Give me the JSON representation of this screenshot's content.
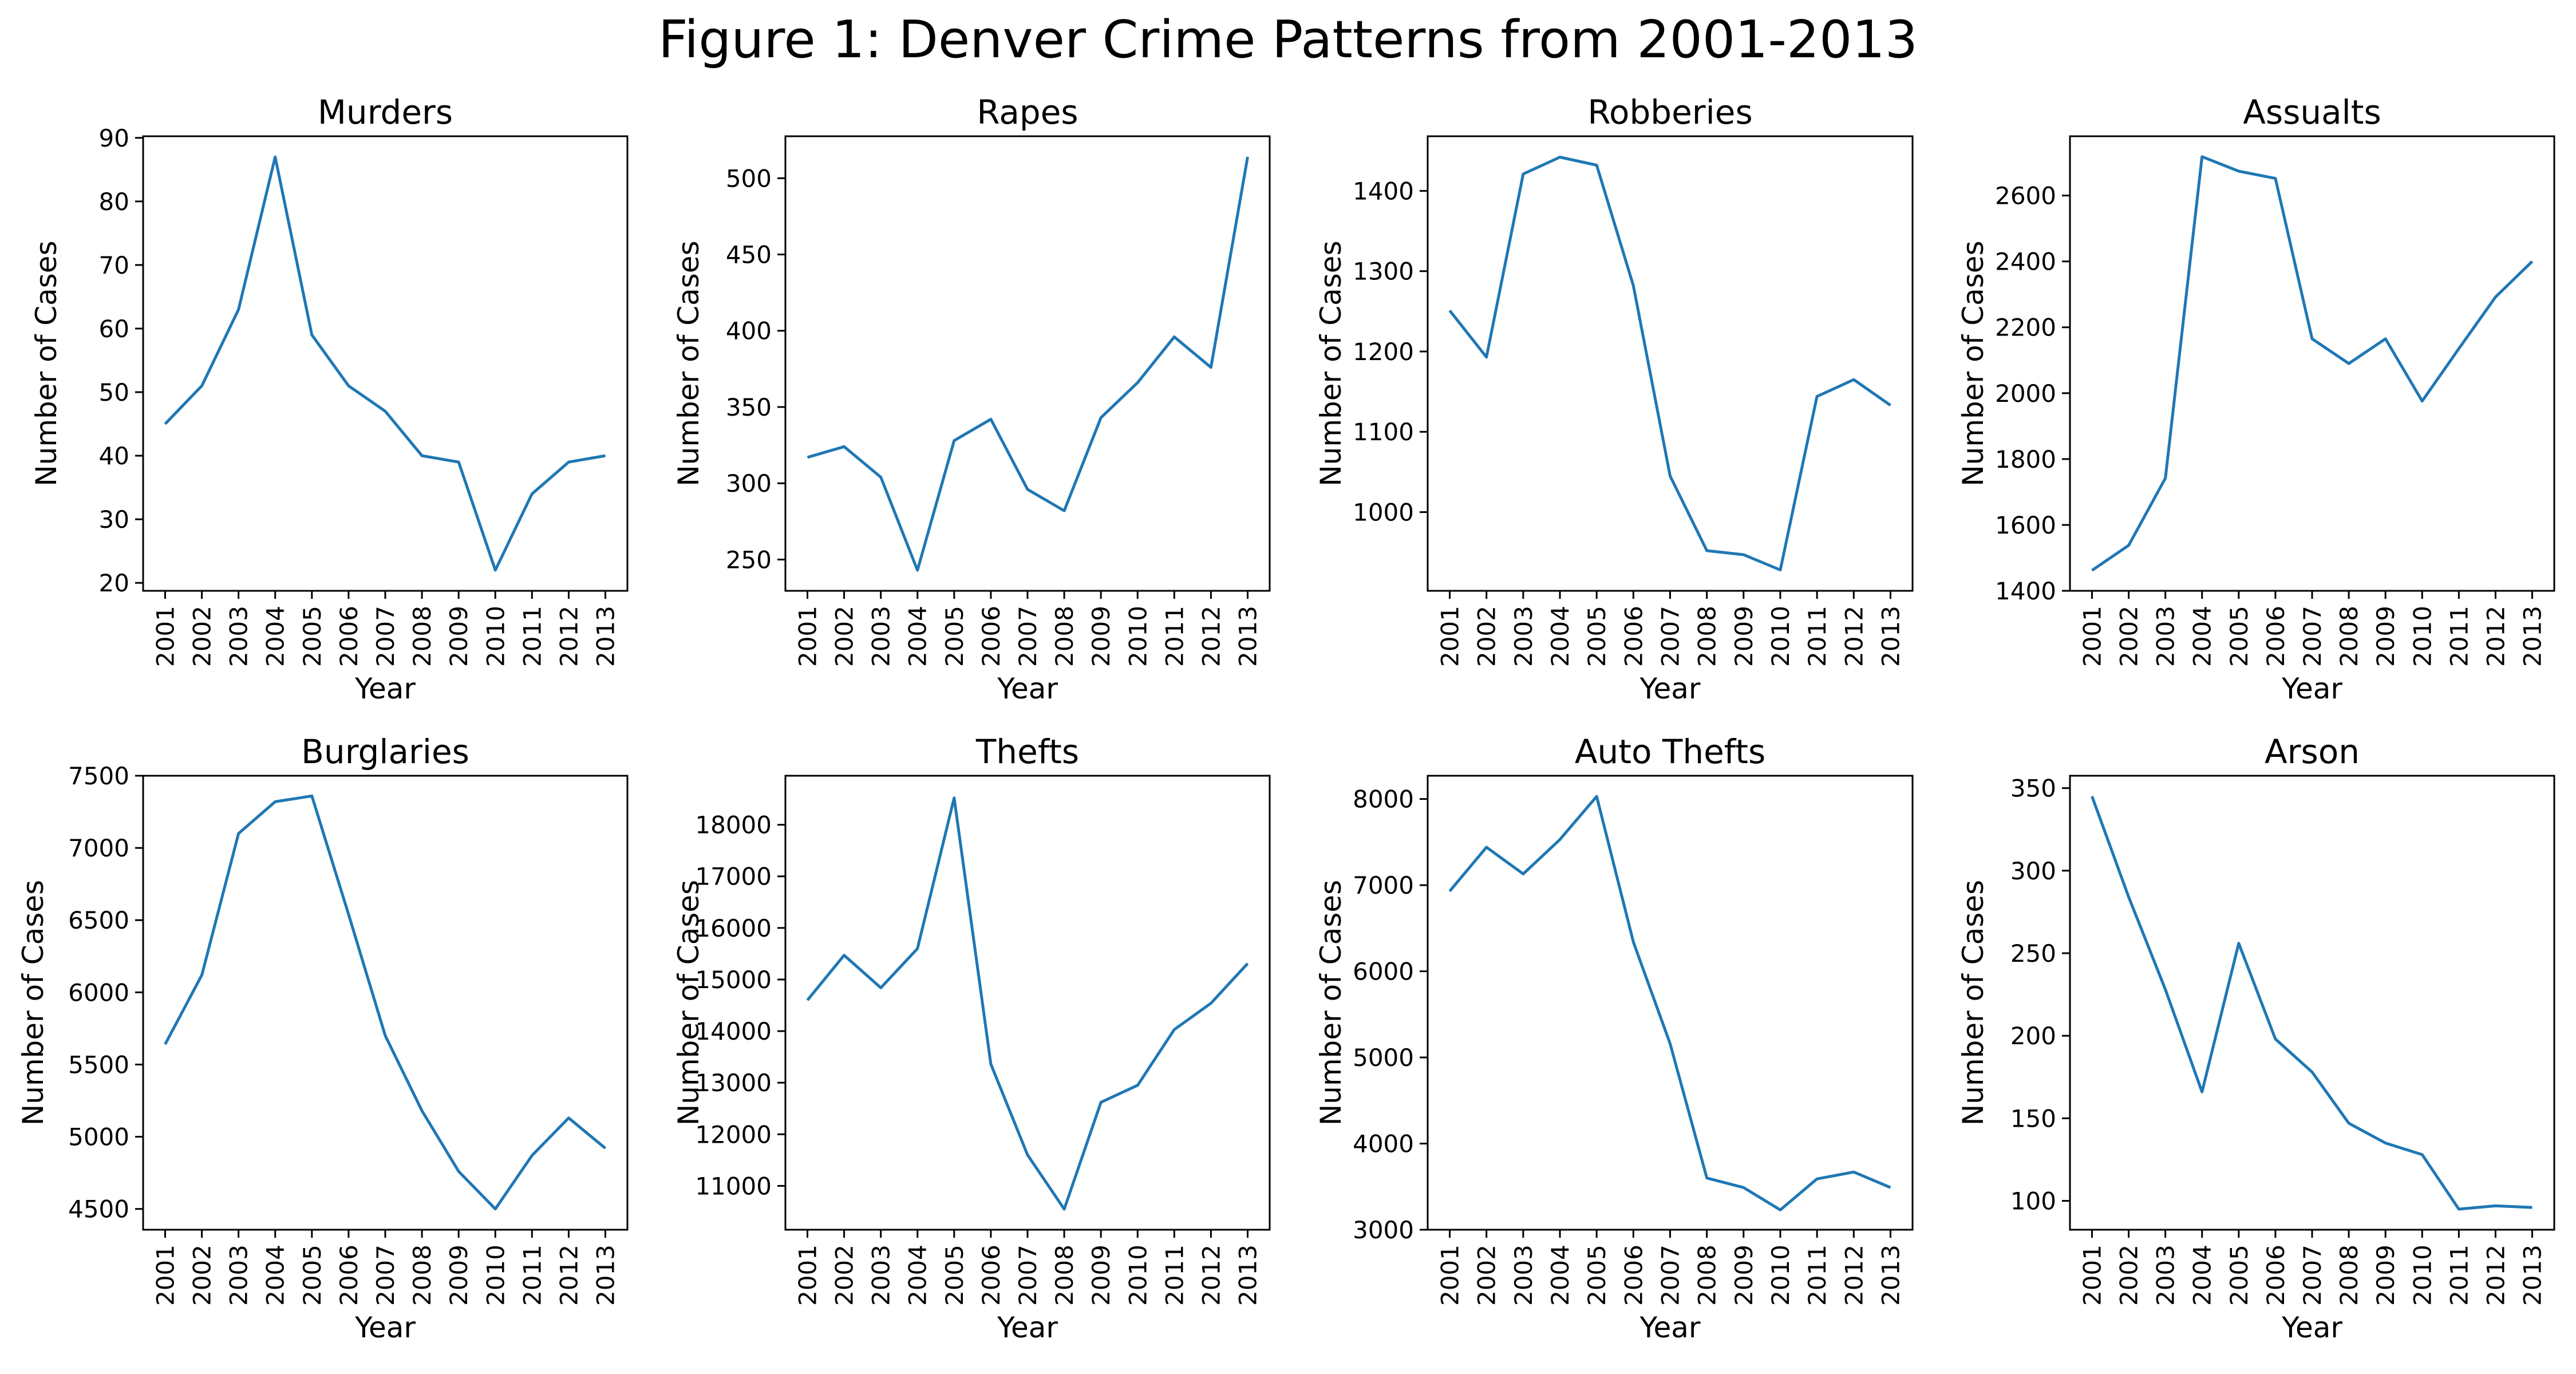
{
  "figure": {
    "title": "Figure 1: Denver Crime Patterns from 2001-2013",
    "line_color": "#1f77b4"
  },
  "chart_data": [
    {
      "type": "line",
      "title": "Murders",
      "xlabel": "Year",
      "ylabel": "Number of Cases",
      "categories": [
        "2001",
        "2002",
        "2003",
        "2004",
        "2005",
        "2006",
        "2007",
        "2008",
        "2009",
        "2010",
        "2011",
        "2012",
        "2013"
      ],
      "values": [
        45,
        51,
        63,
        87,
        59,
        51,
        47,
        40,
        39,
        22,
        34,
        39,
        40
      ],
      "ylim": [
        18.75,
        90.25
      ],
      "yticks": [
        20,
        30,
        40,
        50,
        60,
        70,
        80,
        90
      ],
      "grid": false,
      "legend": "none"
    },
    {
      "type": "line",
      "title": "Rapes",
      "xlabel": "Year",
      "ylabel": "Number of Cases",
      "categories": [
        "2001",
        "2002",
        "2003",
        "2004",
        "2005",
        "2006",
        "2007",
        "2008",
        "2009",
        "2010",
        "2011",
        "2012",
        "2013"
      ],
      "values": [
        317,
        324,
        304,
        243,
        328,
        342,
        296,
        282,
        343,
        366,
        396,
        376,
        514
      ],
      "ylim": [
        229.5,
        527.5
      ],
      "yticks": [
        250,
        300,
        350,
        400,
        450,
        500
      ],
      "grid": false,
      "legend": "none"
    },
    {
      "type": "line",
      "title": "Robberies",
      "xlabel": "Year",
      "ylabel": "Number of Cases",
      "categories": [
        "2001",
        "2002",
        "2003",
        "2004",
        "2005",
        "2006",
        "2007",
        "2008",
        "2009",
        "2010",
        "2011",
        "2012",
        "2013"
      ],
      "values": [
        1251,
        1193,
        1421,
        1442,
        1432,
        1282,
        1045,
        952,
        947,
        928,
        1144,
        1165,
        1133
      ],
      "ylim": [
        902,
        1468
      ],
      "yticks": [
        1000,
        1100,
        1200,
        1300,
        1400
      ],
      "grid": false,
      "legend": "none"
    },
    {
      "type": "line",
      "title": "Assualts",
      "xlabel": "Year",
      "ylabel": "Number of Cases",
      "categories": [
        "2001",
        "2002",
        "2003",
        "2004",
        "2005",
        "2006",
        "2007",
        "2008",
        "2009",
        "2010",
        "2011",
        "2012",
        "2013"
      ],
      "values": [
        1462,
        1538,
        1742,
        2718,
        2674,
        2652,
        2165,
        2090,
        2165,
        1976,
        2135,
        2292,
        2400
      ],
      "ylim": [
        1400,
        2780
      ],
      "yticks": [
        1400,
        1600,
        1800,
        2000,
        2200,
        2400,
        2600
      ],
      "grid": false,
      "legend": "none"
    },
    {
      "type": "line",
      "title": "Burglaries",
      "xlabel": "Year",
      "ylabel": "Number of Cases",
      "categories": [
        "2001",
        "2002",
        "2003",
        "2004",
        "2005",
        "2006",
        "2007",
        "2008",
        "2009",
        "2010",
        "2011",
        "2012",
        "2013"
      ],
      "values": [
        5640,
        6120,
        7100,
        7320,
        7360,
        6540,
        5700,
        5180,
        4760,
        4500,
        4870,
        5130,
        4920
      ],
      "ylim": [
        4356,
        7500
      ],
      "yticks": [
        4500,
        5000,
        5500,
        6000,
        6500,
        7000,
        7500
      ],
      "grid": false,
      "legend": "none"
    },
    {
      "type": "line",
      "title": "Thefts",
      "xlabel": "Year",
      "ylabel": "Number of Cases",
      "categories": [
        "2001",
        "2002",
        "2003",
        "2004",
        "2005",
        "2006",
        "2007",
        "2008",
        "2009",
        "2010",
        "2011",
        "2012",
        "2013"
      ],
      "values": [
        14600,
        15470,
        14840,
        15600,
        18520,
        13360,
        11600,
        10550,
        12620,
        12950,
        14030,
        14540,
        15310
      ],
      "ylim": [
        10150,
        18950
      ],
      "yticks": [
        11000,
        12000,
        13000,
        14000,
        15000,
        16000,
        17000,
        18000
      ],
      "grid": false,
      "legend": "none"
    },
    {
      "type": "line",
      "title": "Auto Thefts",
      "xlabel": "Year",
      "ylabel": "Number of Cases",
      "categories": [
        "2001",
        "2002",
        "2003",
        "2004",
        "2005",
        "2006",
        "2007",
        "2008",
        "2009",
        "2010",
        "2011",
        "2012",
        "2013"
      ],
      "values": [
        6930,
        7440,
        7130,
        7530,
        8030,
        6340,
        5160,
        3600,
        3490,
        3230,
        3590,
        3670,
        3490
      ],
      "ylim": [
        3000,
        8270
      ],
      "yticks": [
        3000,
        4000,
        5000,
        6000,
        7000,
        8000
      ],
      "grid": false,
      "legend": "none"
    },
    {
      "type": "line",
      "title": "Arson",
      "xlabel": "Year",
      "ylabel": "Number of Cases",
      "categories": [
        "2001",
        "2002",
        "2003",
        "2004",
        "2005",
        "2006",
        "2007",
        "2008",
        "2009",
        "2010",
        "2011",
        "2012",
        "2013"
      ],
      "values": [
        345,
        284,
        228,
        166,
        256,
        198,
        178,
        147,
        135,
        128,
        95,
        97,
        96
      ],
      "ylim": [
        82.5,
        357.5
      ],
      "yticks": [
        100,
        150,
        200,
        250,
        300,
        350
      ],
      "grid": false,
      "legend": "none"
    }
  ]
}
